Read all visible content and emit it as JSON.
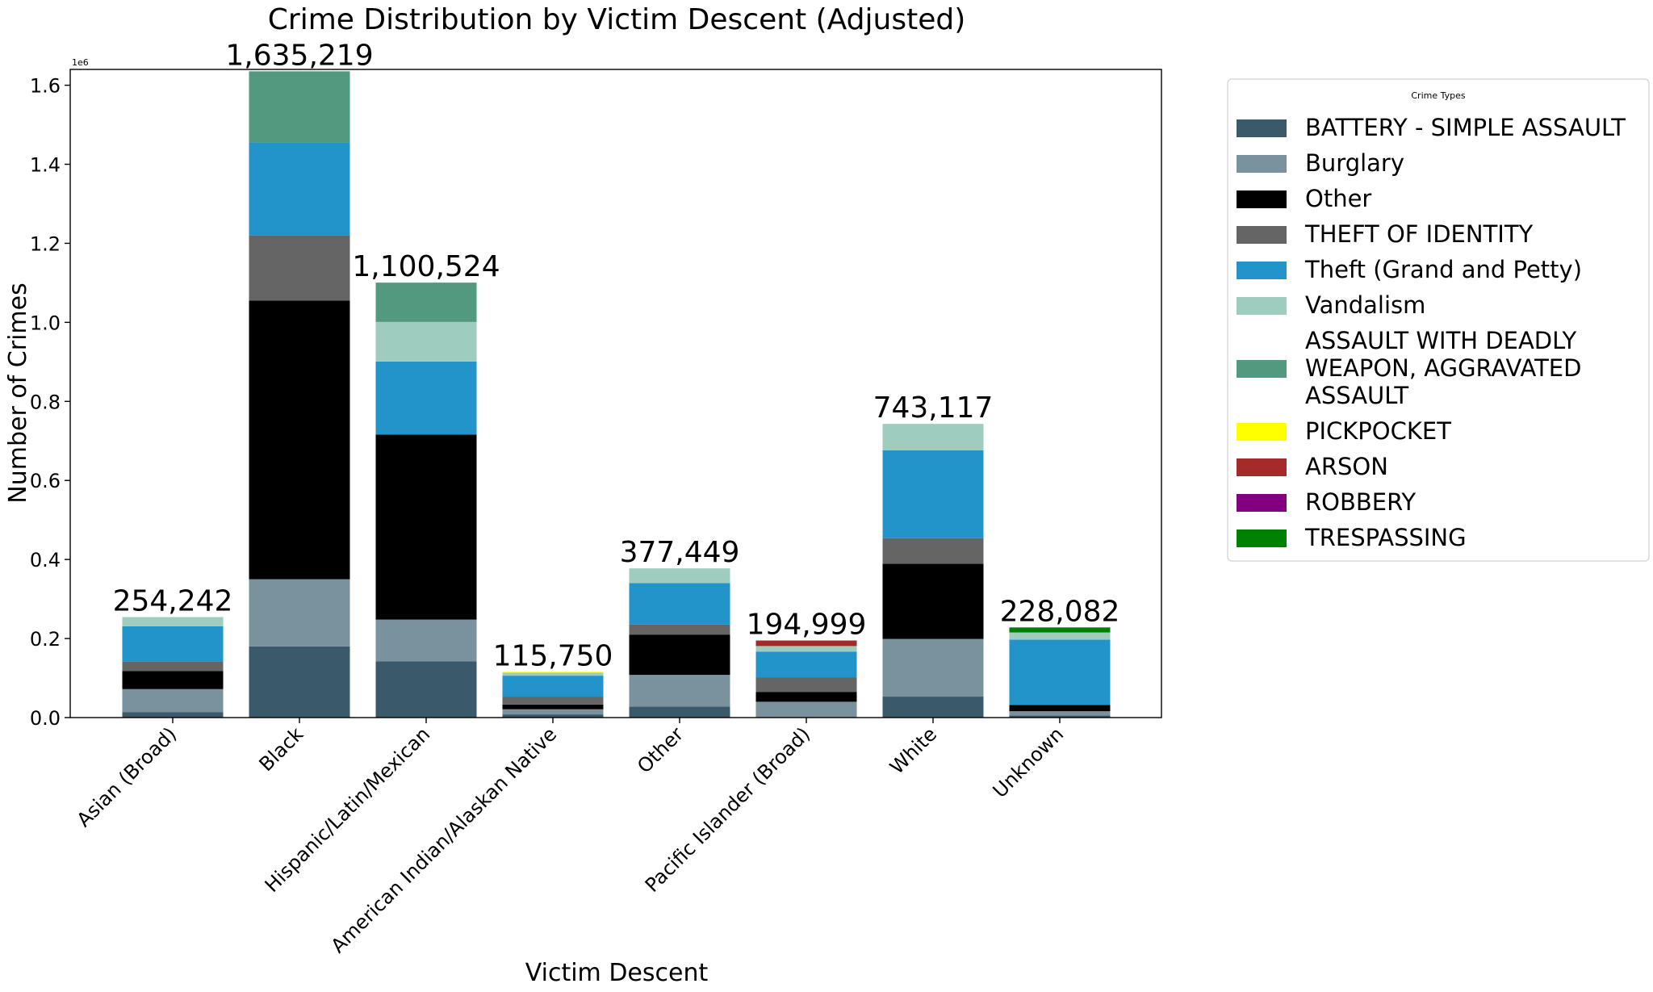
{
  "chart_data": {
    "type": "bar",
    "stacked": true,
    "title": "Crime Distribution by Victim Descent (Adjusted)",
    "xlabel": "Victim Descent",
    "ylabel": "Number of Crimes",
    "y_offset_label": "1e6",
    "ylim": [
      0,
      1640000
    ],
    "yticks": [
      0,
      200000,
      400000,
      600000,
      800000,
      1000000,
      1200000,
      1400000,
      1600000
    ],
    "ytick_labels": [
      "0.0",
      "0.2",
      "0.4",
      "0.6",
      "0.8",
      "1.0",
      "1.2",
      "1.4",
      "1.6"
    ],
    "grid": false,
    "categories": [
      "Asian (Broad)",
      "Black",
      "Hispanic/Latin/Mexican",
      "American Indian/Alaskan Native",
      "Other",
      "Pacific Islander (Broad)",
      "White",
      "Unknown"
    ],
    "totals": [
      254242,
      1635219,
      1100524,
      115750,
      377449,
      194999,
      743117,
      228082
    ],
    "total_labels": [
      "254,242",
      "1,635,219",
      "1,100,524",
      "115,750",
      "377,449",
      "194,999",
      "743,117",
      "228,082"
    ],
    "legend": {
      "title": "Crime Types",
      "position": "outside right"
    },
    "series": [
      {
        "name": "BATTERY - SIMPLE ASSAULT",
        "color": "#3a5a6c",
        "values": [
          14000,
          180000,
          142000,
          8000,
          28000,
          0,
          53000,
          5000
        ]
      },
      {
        "name": "Burglary",
        "color": "#7a919e",
        "values": [
          58000,
          170000,
          106000,
          13000,
          80000,
          40000,
          146000,
          11000
        ]
      },
      {
        "name": "Other",
        "color": "#000000",
        "values": [
          46000,
          705000,
          468000,
          12000,
          102000,
          25000,
          190000,
          16000
        ]
      },
      {
        "name": "THEFT OF IDENTITY",
        "color": "#656565",
        "values": [
          23000,
          165000,
          0,
          20000,
          25000,
          37000,
          65000,
          0
        ]
      },
      {
        "name": "Theft (Grand and Petty)",
        "color": "#2394c9",
        "values": [
          90000,
          235000,
          185000,
          53000,
          105000,
          65000,
          222000,
          165000
        ]
      },
      {
        "name": "Vandalism",
        "color": "#9ecdbf",
        "values": [
          23242,
          0,
          100000,
          7750,
          37449,
          13999,
          67117,
          18000
        ]
      },
      {
        "name": "ASSAULT WITH DEADLY WEAPON, AGGRAVATED ASSAULT",
        "legend_lines": [
          "ASSAULT WITH DEADLY",
          "WEAPON, AGGRAVATED",
          "ASSAULT"
        ],
        "color": "#52997f",
        "values": [
          0,
          180219,
          99524,
          0,
          0,
          0,
          0,
          0
        ]
      },
      {
        "name": "PICKPOCKET",
        "color": "#ffff00",
        "values": [
          0,
          0,
          0,
          2000,
          0,
          0,
          0,
          0
        ]
      },
      {
        "name": "ARSON",
        "color": "#a52a2a",
        "values": [
          0,
          0,
          0,
          0,
          0,
          14000,
          0,
          0
        ]
      },
      {
        "name": "ROBBERY",
        "color": "#800080",
        "values": [
          0,
          0,
          0,
          0,
          0,
          0,
          0,
          1000
        ]
      },
      {
        "name": "TRESPASSING",
        "color": "#008000",
        "values": [
          0,
          0,
          0,
          0,
          0,
          0,
          0,
          12082
        ]
      }
    ]
  }
}
